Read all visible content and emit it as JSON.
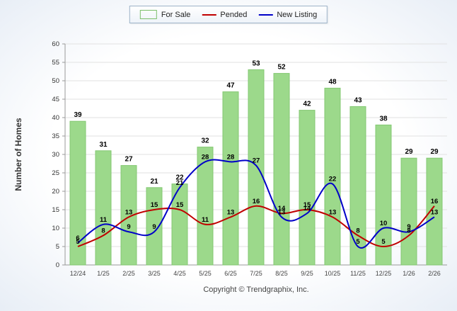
{
  "legend": {
    "items": [
      {
        "label": "For Sale",
        "type": "square",
        "color": "#9CD98B"
      },
      {
        "label": "Pended",
        "type": "line",
        "color": "#C00000"
      },
      {
        "label": "New Listing",
        "type": "line",
        "color": "#0000C8"
      }
    ]
  },
  "ylabel": "Number of Homes",
  "footer": "Copyright © Trendgraphix, Inc.",
  "chart_data": {
    "type": "bar",
    "categories": [
      "12/24",
      "1/25",
      "2/25",
      "3/25",
      "4/25",
      "5/25",
      "6/25",
      "7/25",
      "8/25",
      "9/25",
      "10/25",
      "11/25",
      "12/25",
      "1/26",
      "2/26"
    ],
    "series": [
      {
        "name": "For Sale",
        "type": "bar",
        "color": "#9CD98B",
        "border": "#84c873",
        "values": [
          39,
          31,
          27,
          21,
          22,
          32,
          47,
          53,
          52,
          42,
          48,
          43,
          38,
          29,
          29
        ]
      },
      {
        "name": "Pended",
        "type": "line",
        "color": "#C00000",
        "values": [
          5,
          8,
          13,
          15,
          15,
          11,
          13,
          16,
          14,
          15,
          13,
          8,
          5,
          8,
          16
        ]
      },
      {
        "name": "New Listing",
        "type": "line",
        "color": "#0000C8",
        "values": [
          6,
          11,
          9,
          9,
          21,
          28,
          28,
          27,
          13,
          14,
          22,
          5,
          10,
          9,
          13
        ]
      }
    ],
    "ylim": [
      0,
      60
    ],
    "ytick_step": 5,
    "grid": true,
    "legend_position": "top-center"
  }
}
